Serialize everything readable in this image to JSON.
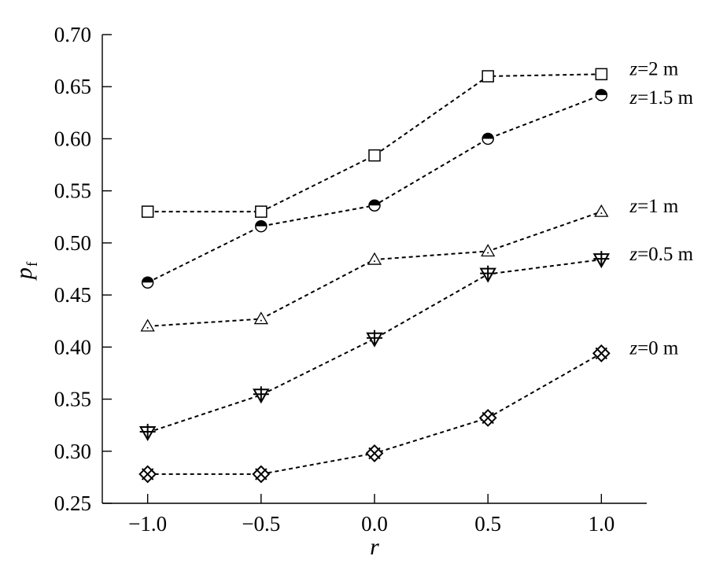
{
  "chart_data": {
    "type": "line",
    "xlabel": "r",
    "ylabel": "p",
    "ylabel_subscript": "f",
    "x": [
      -1.0,
      -0.5,
      0.0,
      0.5,
      1.0
    ],
    "xlim": [
      -1.2,
      1.2
    ],
    "ylim": [
      0.25,
      0.7
    ],
    "xticks": [
      "-1.0",
      "-0.5",
      "0.0",
      "0.5",
      "1.0"
    ],
    "yticks": [
      "0.25",
      "0.30",
      "0.35",
      "0.40",
      "0.45",
      "0.50",
      "0.55",
      "0.60",
      "0.65",
      "0.70"
    ],
    "grid": false,
    "series": [
      {
        "name": "z=2 m",
        "label_var": "z",
        "label_rest": "=2 m",
        "marker": "square-open",
        "values": [
          0.53,
          0.53,
          0.584,
          0.66,
          0.662
        ]
      },
      {
        "name": "z=1.5 m",
        "label_var": "z",
        "label_rest": "=1.5 m",
        "marker": "circle-half",
        "values": [
          0.462,
          0.516,
          0.536,
          0.6,
          0.642
        ]
      },
      {
        "name": "z=1 m",
        "label_var": "z",
        "label_rest": "=1 m",
        "marker": "triangle-open",
        "values": [
          0.42,
          0.427,
          0.484,
          0.492,
          0.53
        ]
      },
      {
        "name": "z=0.5 m",
        "label_var": "z",
        "label_rest": "=0.5 m",
        "marker": "triangle-down-cross",
        "values": [
          0.318,
          0.354,
          0.408,
          0.47,
          0.484
        ]
      },
      {
        "name": "z=0 m",
        "label_var": "z",
        "label_rest": "=0 m",
        "marker": "diamond-x",
        "values": [
          0.278,
          0.278,
          0.298,
          0.332,
          0.394
        ]
      }
    ]
  }
}
